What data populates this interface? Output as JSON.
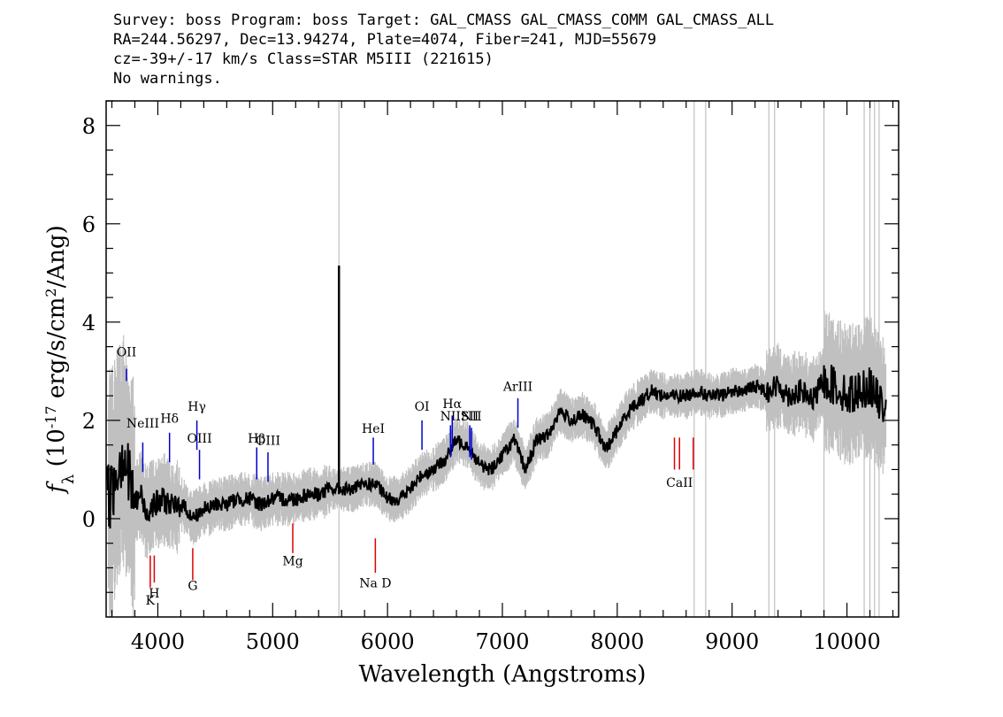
{
  "header": {
    "line1": "Survey: boss Program: boss Target: GAL_CMASS GAL_CMASS_COMM GAL_CMASS_ALL",
    "line2": "RA=244.56297, Dec=13.94274, Plate=4074, Fiber=241, MJD=55679",
    "line3": "cz=-39+/-17 km/s Class=STAR M5III (221615)",
    "line4": "No warnings."
  },
  "chart_data": {
    "type": "line",
    "xlabel": "Wavelength (Angstroms)",
    "ylabel": "f_λ (10^-17 erg/s/cm^2/Ang)",
    "xlim": [
      3550,
      10450
    ],
    "ylim": [
      -2.0,
      8.5
    ],
    "x_ticks": [
      4000,
      5000,
      6000,
      7000,
      8000,
      9000,
      10000
    ],
    "y_ticks": [
      0,
      2,
      4,
      6,
      8
    ],
    "grid": false,
    "colors": {
      "flux": "#000000",
      "noise": "#c0c0c0",
      "emission": "#0000cc",
      "absorption": "#dd0000"
    },
    "series": [
      {
        "x": [
          3600,
          3650,
          3700,
          3750,
          3800,
          3850,
          3900,
          3950,
          4000,
          4050,
          4100,
          4150,
          4200,
          4250,
          4300,
          4350,
          4400,
          4450,
          4500,
          4600,
          4700,
          4800,
          4900,
          5000,
          5100,
          5200,
          5300,
          5400,
          5500,
          5600,
          5700,
          5800,
          5900,
          6000,
          6100,
          6200,
          6300,
          6400,
          6500,
          6600,
          6700,
          6800,
          6900,
          7000,
          7100,
          7200,
          7300,
          7400,
          7500,
          7600,
          7700,
          7800,
          7900,
          8000,
          8100,
          8200,
          8300,
          8400,
          8500,
          8600,
          8700,
          8800,
          8900,
          9000,
          9100,
          9200,
          9300,
          9400,
          9500,
          9600,
          9700,
          9800,
          9900,
          10000,
          10100,
          10200,
          10300
        ],
        "values": [
          0.5,
          1.1,
          1.4,
          0.8,
          0.3,
          0.5,
          0.1,
          0.3,
          0.3,
          0.4,
          0.3,
          0.2,
          0.3,
          0.2,
          0.0,
          0.1,
          0.2,
          0.2,
          0.3,
          0.3,
          0.4,
          0.4,
          0.3,
          0.4,
          0.4,
          0.4,
          0.5,
          0.5,
          0.6,
          0.6,
          0.6,
          0.7,
          0.7,
          0.4,
          0.4,
          0.6,
          0.9,
          1.0,
          1.2,
          1.6,
          1.5,
          1.1,
          1.0,
          1.3,
          1.6,
          1.0,
          1.6,
          1.7,
          2.2,
          2.0,
          2.1,
          1.9,
          1.4,
          1.8,
          2.2,
          2.4,
          2.6,
          2.5,
          2.5,
          2.5,
          2.6,
          2.5,
          2.5,
          2.6,
          2.6,
          2.7,
          2.6,
          2.7,
          2.5,
          2.6,
          2.4,
          2.8,
          2.7,
          2.5,
          2.6,
          2.7,
          2.3
        ]
      }
    ],
    "line_labels": [
      {
        "text": "OII",
        "x": 3727,
        "kind": "emission"
      },
      {
        "text": "NeIII",
        "x": 3869,
        "kind": "emission"
      },
      {
        "text": "Hδ",
        "x": 4102,
        "kind": "emission"
      },
      {
        "text": "Hγ",
        "x": 4340,
        "kind": "emission"
      },
      {
        "text": "OIII",
        "x": 4363,
        "kind": "emission"
      },
      {
        "text": "Hβ",
        "x": 4861,
        "kind": "emission"
      },
      {
        "text": "OIII",
        "x": 4959,
        "kind": "emission"
      },
      {
        "text": "HeI",
        "x": 5876,
        "kind": "emission"
      },
      {
        "text": "OI",
        "x": 6300,
        "kind": "emission"
      },
      {
        "text": "NII",
        "x": 6548,
        "kind": "emission"
      },
      {
        "text": "Hα",
        "x": 6563,
        "kind": "emission"
      },
      {
        "text": "SII",
        "x": 6716,
        "kind": "emission"
      },
      {
        "text": "NII",
        "x": 6731,
        "kind": "emission"
      },
      {
        "text": "ArIII",
        "x": 7135,
        "kind": "emission"
      },
      {
        "text": "K",
        "x": 3934,
        "kind": "absorption"
      },
      {
        "text": "H",
        "x": 3969,
        "kind": "absorption"
      },
      {
        "text": "G",
        "x": 4304,
        "kind": "absorption"
      },
      {
        "text": "Mg",
        "x": 5175,
        "kind": "absorption"
      },
      {
        "text": "Na D",
        "x": 5894,
        "kind": "absorption"
      },
      {
        "text": "CaII",
        "x": 8542,
        "kind": "absorption"
      }
    ]
  }
}
